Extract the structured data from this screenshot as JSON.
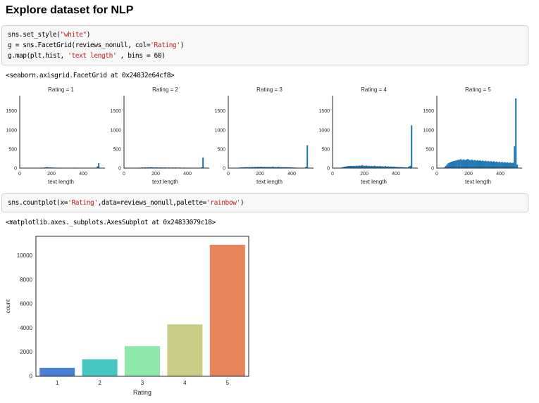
{
  "page": {
    "title": "Explore dataset for NLP"
  },
  "code_cells": {
    "cell1": [
      [
        [
          "sns.set_style(",
          "pln"
        ],
        [
          "\"white\"",
          "str"
        ],
        [
          ")",
          "pln"
        ]
      ],
      [
        [
          "g = sns.FacetGrid(reviews_nonull, col=",
          "pln"
        ],
        [
          "'Rating'",
          "str"
        ],
        [
          ")",
          "pln"
        ]
      ],
      [
        [
          "g.map(plt.hist, ",
          "pln"
        ],
        [
          "'text length'",
          "str"
        ],
        [
          " , bins = 60)",
          "pln"
        ]
      ]
    ],
    "cell2": [
      [
        [
          "sns.countplot(x=",
          "pln"
        ],
        [
          "'Rating'",
          "str"
        ],
        [
          ",data=reviews_nonull,palette=",
          "pln"
        ],
        [
          "'rainbow'",
          "str"
        ],
        [
          ")",
          "pln"
        ]
      ]
    ]
  },
  "outputs": {
    "facetgrid_repr": "<seaborn.axisgrid.FacetGrid at 0x24832e64cf8>",
    "axessubplot_repr": "<matplotlib.axes._subplots.AxesSubplot at 0x24833079c18>"
  },
  "chart_data": [
    {
      "type": "bar",
      "subtype": "facet_histograms",
      "xlabel": "text length",
      "xlim": [
        0,
        520
      ],
      "ylim": [
        0,
        1900
      ],
      "xticks": [
        0,
        200,
        400
      ],
      "yticks": [
        0,
        500,
        1000,
        1500
      ],
      "bins": 60,
      "bar_color": "#1f77b4",
      "grid": false,
      "facets": [
        {
          "title": "Rating = 1",
          "values": [
            0,
            0,
            0,
            0,
            0,
            0,
            0,
            0,
            0,
            0,
            0,
            5,
            8,
            10,
            6,
            12,
            9,
            14,
            18,
            25,
            22,
            16,
            18,
            12,
            15,
            11,
            9,
            12,
            8,
            10,
            9,
            7,
            10,
            8,
            6,
            9,
            7,
            5,
            8,
            10,
            12,
            9,
            6,
            8,
            7,
            5,
            4,
            3,
            0,
            0,
            0,
            0,
            0,
            0,
            0,
            0,
            45,
            130,
            0,
            0
          ]
        },
        {
          "title": "Rating = 2",
          "values": [
            0,
            0,
            0,
            0,
            0,
            0,
            0,
            0,
            0,
            0,
            0,
            10,
            14,
            18,
            15,
            20,
            16,
            22,
            19,
            24,
            21,
            18,
            15,
            20,
            17,
            14,
            19,
            16,
            13,
            18,
            15,
            12,
            16,
            14,
            11,
            15,
            13,
            17,
            12,
            10,
            14,
            11,
            9,
            13,
            10,
            8,
            11,
            9,
            7,
            10,
            8,
            6,
            5,
            0,
            0,
            0,
            20,
            280,
            0,
            0
          ]
        },
        {
          "title": "Rating = 3",
          "values": [
            0,
            0,
            0,
            0,
            0,
            0,
            8,
            12,
            15,
            18,
            20,
            22,
            24,
            26,
            23,
            28,
            25,
            30,
            27,
            32,
            29,
            34,
            30,
            35,
            32,
            30,
            33,
            29,
            31,
            28,
            30,
            27,
            40,
            26,
            28,
            25,
            35,
            24,
            26,
            23,
            25,
            22,
            24,
            21,
            23,
            20,
            18,
            16,
            14,
            12,
            10,
            8,
            6,
            5,
            0,
            10,
            30,
            600,
            0,
            0
          ]
        },
        {
          "title": "Rating = 4",
          "values": [
            0,
            0,
            0,
            0,
            0,
            6,
            15,
            25,
            35,
            42,
            48,
            52,
            55,
            58,
            54,
            60,
            56,
            63,
            58,
            66,
            61,
            80,
            64,
            58,
            70,
            55,
            60,
            52,
            57,
            50,
            65,
            48,
            52,
            46,
            58,
            44,
            48,
            42,
            55,
            40,
            44,
            38,
            42,
            36,
            40,
            34,
            32,
            30,
            28,
            26,
            24,
            22,
            20,
            18,
            16,
            40,
            60,
            1120,
            0,
            0
          ]
        },
        {
          "title": "Rating = 5",
          "values": [
            0,
            0,
            0,
            0,
            5,
            20,
            60,
            100,
            130,
            150,
            165,
            175,
            185,
            195,
            205,
            215,
            220,
            235,
            215,
            228,
            210,
            222,
            240,
            218,
            205,
            225,
            200,
            215,
            195,
            210,
            190,
            205,
            185,
            200,
            180,
            195,
            175,
            188,
            170,
            182,
            165,
            178,
            160,
            172,
            155,
            168,
            150,
            162,
            145,
            158,
            140,
            152,
            135,
            148,
            130,
            142,
            570,
            1830,
            90,
            0
          ]
        }
      ]
    },
    {
      "type": "bar",
      "categories": [
        "1",
        "2",
        "3",
        "4",
        "5"
      ],
      "values": [
        700,
        1400,
        2500,
        4300,
        10900
      ],
      "colors": [
        "#4a7fd6",
        "#45c6c1",
        "#8ce9ab",
        "#c9cd85",
        "#e8845a"
      ],
      "xlabel": "Rating",
      "ylabel": "count",
      "ylim": [
        0,
        11600
      ],
      "yticks": [
        0,
        2000,
        4000,
        6000,
        8000,
        10000
      ],
      "grid": false,
      "legend": false
    }
  ],
  "colors": {
    "cell_background": "#f7f7f7",
    "cell_border": "#d1d1d1",
    "code_string": "#ba2121",
    "axis_text": "#262626",
    "histogram_bar": "#1f77b4"
  }
}
